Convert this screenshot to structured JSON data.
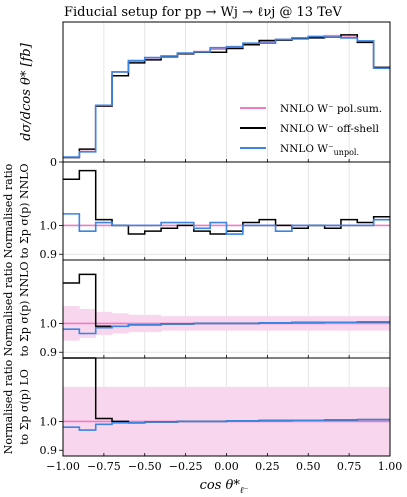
{
  "title": "Fiducial setup for pp → Wj → ℓνj @ 13 TeV",
  "xlabel": "cos θ*",
  "xlabel_sub": "ℓ⁻",
  "colors": {
    "polsum": "#f07cc0",
    "offshell": "#000000",
    "unpol": "#3b84e0",
    "band": "#f7d6ee",
    "grid": "#dddddd"
  },
  "legend": {
    "placement": "center-right",
    "items": [
      {
        "series": "polsum",
        "label": "NNLO W⁻ pol.sum."
      },
      {
        "series": "offshell",
        "label": "NNLO W⁻ off-shell"
      },
      {
        "series": "unpol",
        "label": "NNLO W⁻",
        "sub": "unpol."
      }
    ]
  },
  "chart_data": [
    {
      "type": "line",
      "panel": "main",
      "ylabel": "dσ/dcos θ* [fb]",
      "xlim": [
        -1,
        1
      ],
      "ylim": [
        0,
        370
      ],
      "yticks": [
        0
      ],
      "xedges": [
        -1.0,
        -0.9,
        -0.8,
        -0.7,
        -0.6,
        -0.5,
        -0.4,
        -0.3,
        -0.2,
        -0.1,
        0.0,
        0.1,
        0.2,
        0.3,
        0.4,
        0.5,
        0.6,
        0.7,
        0.8,
        0.9,
        1.0
      ],
      "series": [
        {
          "name": "NNLO W⁻ pol.sum.",
          "key": "polsum",
          "values": [
            12,
            28,
            148,
            238,
            266,
            275,
            280,
            286,
            292,
            298,
            305,
            312,
            318,
            324,
            328,
            331,
            334,
            330,
            318,
            250
          ]
        },
        {
          "name": "NNLO W⁻ off-shell",
          "key": "offshell",
          "values": [
            12,
            34,
            148,
            228,
            262,
            270,
            278,
            286,
            290,
            290,
            300,
            310,
            321,
            322,
            326,
            328,
            330,
            336,
            316,
            250
          ]
        },
        {
          "name": "NNLO W⁻",
          "key": "unpol",
          "values": [
            13,
            27,
            150,
            238,
            268,
            276,
            280,
            288,
            291,
            302,
            304,
            314,
            314,
            324,
            328,
            332,
            330,
            328,
            320,
            248
          ]
        }
      ]
    },
    {
      "type": "line",
      "panel": "ratio-nnlo",
      "ylabel_line1": "Normalised ratio",
      "ylabel_line2": "to Σp σ(p) NNLO",
      "xlim": [
        -1,
        1
      ],
      "ylim": [
        0.88,
        1.22
      ],
      "yticks": [
        0.9,
        1.0
      ],
      "band": [],
      "series": [
        {
          "key": "polsum",
          "values": [
            1,
            1,
            1,
            1,
            1,
            1,
            1,
            1,
            1,
            1,
            1,
            1,
            1,
            1,
            1,
            1,
            1,
            1,
            1,
            1
          ]
        },
        {
          "key": "offshell",
          "values": [
            1.16,
            1.19,
            1.02,
            1.0,
            0.97,
            0.98,
            0.99,
            1.0,
            0.98,
            0.97,
            0.98,
            1.01,
            1.02,
            1.0,
            0.99,
            1.0,
            0.99,
            1.02,
            1.01,
            1.03
          ]
        },
        {
          "key": "unpol",
          "values": [
            1.04,
            0.98,
            1.01,
            1.0,
            1.0,
            1.0,
            1.01,
            1.01,
            0.99,
            1.01,
            0.97,
            1.0,
            1.0,
            0.98,
            1.0,
            1.0,
            1.0,
            1.0,
            1.0,
            1.02
          ]
        }
      ]
    },
    {
      "type": "line",
      "panel": "ratio-nnlo-band",
      "ylabel_line1": "Normalised ratio",
      "ylabel_line2": "to Σp σ(p) NNLO",
      "xlim": [
        -1,
        1
      ],
      "ylim": [
        0.88,
        1.22
      ],
      "yticks": [
        0.9,
        1.0
      ],
      "band": [
        [
          0.94,
          1.06
        ],
        [
          0.95,
          1.05
        ],
        [
          0.96,
          1.04
        ],
        [
          0.965,
          1.035
        ],
        [
          0.97,
          1.03
        ],
        [
          0.97,
          1.03
        ],
        [
          0.975,
          1.025
        ],
        [
          0.975,
          1.025
        ],
        [
          0.975,
          1.025
        ],
        [
          0.975,
          1.025
        ],
        [
          0.975,
          1.025
        ],
        [
          0.975,
          1.025
        ],
        [
          0.975,
          1.025
        ],
        [
          0.975,
          1.025
        ],
        [
          0.975,
          1.025
        ],
        [
          0.975,
          1.025
        ],
        [
          0.975,
          1.025
        ],
        [
          0.975,
          1.025
        ],
        [
          0.975,
          1.025
        ],
        [
          0.975,
          1.025
        ]
      ],
      "series": [
        {
          "key": "polsum",
          "values": [
            1,
            1,
            1,
            1,
            1,
            1,
            1,
            1,
            1,
            1,
            1,
            1,
            1,
            1,
            1,
            1,
            1,
            1,
            1,
            1
          ]
        },
        {
          "key": "offshell",
          "values": [
            1.14,
            1.17,
            0.99,
            0.99,
            0.995,
            0.995,
            0.998,
            0.998,
            1.0,
            1.0,
            1.0,
            1.0,
            1.002,
            1.002,
            1.003,
            1.003,
            1.004,
            1.004,
            1.005,
            1.005
          ]
        },
        {
          "key": "unpol",
          "values": [
            0.98,
            0.965,
            0.985,
            0.99,
            0.995,
            0.995,
            0.998,
            0.998,
            1.0,
            1.0,
            1.0,
            1.0,
            1.002,
            1.002,
            1.003,
            1.003,
            1.004,
            1.004,
            1.005,
            1.005
          ]
        }
      ]
    },
    {
      "type": "line",
      "panel": "ratio-lo",
      "ylabel_line1": "Normalised ratio",
      "ylabel_line2": "to Σp σ(p) LO",
      "xlim": [
        -1,
        1
      ],
      "ylim": [
        0.88,
        1.22
      ],
      "yticks": [
        0.9,
        1.0
      ],
      "band": [
        [
          0.88,
          1.12
        ],
        [
          0.88,
          1.12
        ],
        [
          0.88,
          1.12
        ],
        [
          0.88,
          1.12
        ],
        [
          0.88,
          1.12
        ],
        [
          0.88,
          1.12
        ],
        [
          0.88,
          1.12
        ],
        [
          0.88,
          1.12
        ],
        [
          0.88,
          1.12
        ],
        [
          0.88,
          1.12
        ],
        [
          0.88,
          1.12
        ],
        [
          0.88,
          1.12
        ],
        [
          0.88,
          1.12
        ],
        [
          0.88,
          1.12
        ],
        [
          0.88,
          1.12
        ],
        [
          0.88,
          1.12
        ],
        [
          0.88,
          1.12
        ],
        [
          0.88,
          1.12
        ],
        [
          0.88,
          1.12
        ],
        [
          0.88,
          1.12
        ]
      ],
      "series": [
        {
          "key": "polsum",
          "values": [
            1,
            1,
            1,
            1,
            1,
            1,
            1,
            1,
            1,
            1,
            1,
            1,
            1,
            1,
            1,
            1,
            1,
            1,
            1,
            1
          ]
        },
        {
          "key": "offshell",
          "values": [
            1.22,
            1.22,
            1.01,
            1.0,
            0.995,
            0.998,
            0.998,
            1.0,
            1.0,
            1.0,
            1.002,
            1.002,
            1.003,
            1.003,
            1.004,
            1.004,
            1.005,
            1.005,
            1.006,
            1.006
          ]
        },
        {
          "key": "unpol",
          "values": [
            0.98,
            0.97,
            0.99,
            0.995,
            0.995,
            0.998,
            0.998,
            1.0,
            1.0,
            1.0,
            1.002,
            1.002,
            1.003,
            1.003,
            1.004,
            1.004,
            1.005,
            1.005,
            1.006,
            1.006
          ]
        }
      ]
    }
  ],
  "xticks": [
    "−1.00",
    "−0.75",
    "−0.50",
    "−0.25",
    "0.00",
    "0.25",
    "0.50",
    "0.75",
    "1.00"
  ],
  "xtick_values": [
    -1.0,
    -0.75,
    -0.5,
    -0.25,
    0.0,
    0.25,
    0.5,
    0.75,
    1.0
  ]
}
